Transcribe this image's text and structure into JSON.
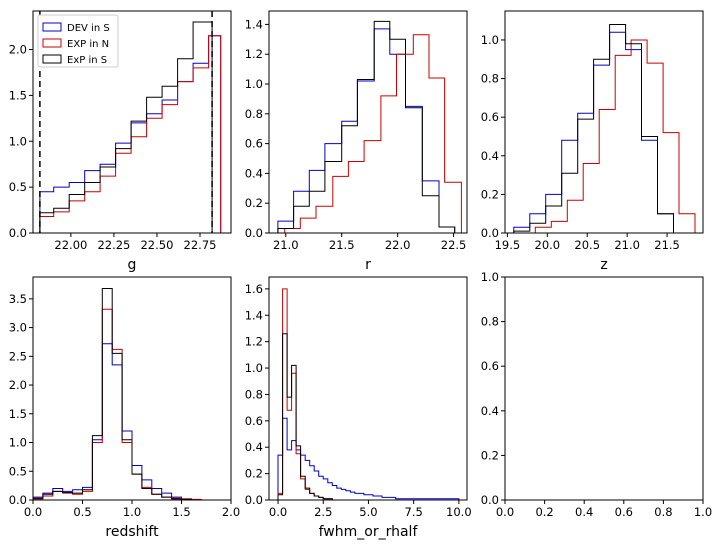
{
  "figure": {
    "colors": {
      "dev_s": "#0000cc",
      "exp_n": "#cc0000",
      "exp_s": "#000000"
    },
    "legend": [
      {
        "label": "DEV in S",
        "color": "#0000cc"
      },
      {
        "label": "EXP in N",
        "color": "#cc0000"
      },
      {
        "label": "ExP in S",
        "color": "#000000"
      }
    ]
  },
  "chart_data": [
    {
      "id": "g",
      "type": "histogram",
      "xlabel": "g",
      "xlim": [
        21.78,
        22.93
      ],
      "ylim": [
        0,
        2.42
      ],
      "xticks": [
        22.0,
        22.25,
        22.5,
        22.75
      ],
      "xtick_labels": [
        "22.00",
        "22.25",
        "22.50",
        "22.75"
      ],
      "yticks": [
        0.0,
        0.5,
        1.0,
        1.5,
        2.0
      ],
      "ytick_labels": [
        "0.0",
        "0.5",
        "1.0",
        "1.5",
        "2.0"
      ],
      "legend": "upper-left",
      "vlines": [
        21.82,
        22.82
      ],
      "series": [
        {
          "name": "DEV in S",
          "color": "#0000cc",
          "edges": [
            21.82,
            21.9,
            21.99,
            22.08,
            22.17,
            22.26,
            22.35,
            22.44,
            22.53,
            22.62,
            22.71,
            22.8,
            22.87
          ],
          "values": [
            0.45,
            0.5,
            0.55,
            0.68,
            0.75,
            0.98,
            1.2,
            1.3,
            1.45,
            1.65,
            1.85,
            2.15
          ]
        },
        {
          "name": "EXP in N",
          "color": "#cc0000",
          "edges": [
            21.82,
            21.9,
            21.99,
            22.08,
            22.17,
            22.26,
            22.35,
            22.44,
            22.53,
            22.62,
            22.71,
            22.8,
            22.87
          ],
          "values": [
            0.18,
            0.23,
            0.35,
            0.45,
            0.62,
            0.87,
            1.05,
            1.25,
            1.4,
            1.65,
            1.8,
            2.15
          ]
        },
        {
          "name": "ExP in S",
          "color": "#000000",
          "edges": [
            21.82,
            21.9,
            21.99,
            22.08,
            22.17,
            22.26,
            22.35,
            22.44,
            22.53,
            22.62,
            22.71,
            22.82
          ],
          "values": [
            0.22,
            0.27,
            0.42,
            0.55,
            0.72,
            0.92,
            1.22,
            1.48,
            1.6,
            1.9,
            2.3
          ]
        }
      ]
    },
    {
      "id": "r",
      "type": "histogram",
      "xlabel": "r",
      "xlim": [
        20.85,
        22.62
      ],
      "ylim": [
        0,
        1.49
      ],
      "xticks": [
        21.0,
        21.5,
        22.0,
        22.5
      ],
      "xtick_labels": [
        "21.0",
        "21.5",
        "22.0",
        "22.5"
      ],
      "yticks": [
        0.0,
        0.2,
        0.4,
        0.6,
        0.8,
        1.0,
        1.2,
        1.4
      ],
      "ytick_labels": [
        "0.0",
        "0.2",
        "0.4",
        "0.6",
        "0.8",
        "1.0",
        "1.2",
        "1.4"
      ],
      "series": [
        {
          "name": "DEV in S",
          "color": "#0000cc",
          "edges": [
            20.93,
            21.07,
            21.21,
            21.35,
            21.5,
            21.64,
            21.79,
            21.93,
            22.07,
            22.22,
            22.37,
            22.51
          ],
          "values": [
            0.08,
            0.28,
            0.42,
            0.6,
            0.75,
            1.02,
            1.37,
            1.2,
            0.85,
            0.35,
            0.04
          ]
        },
        {
          "name": "EXP in N",
          "color": "#cc0000",
          "edges": [
            20.99,
            21.13,
            21.27,
            21.42,
            21.56,
            21.7,
            21.85,
            21.99,
            22.14,
            22.28,
            22.42,
            22.57
          ],
          "values": [
            0.03,
            0.1,
            0.18,
            0.38,
            0.48,
            0.62,
            0.92,
            1.2,
            1.33,
            1.04,
            0.34
          ]
        },
        {
          "name": "ExP in S",
          "color": "#000000",
          "edges": [
            20.93,
            21.07,
            21.21,
            21.35,
            21.5,
            21.64,
            21.79,
            21.93,
            22.07,
            22.22,
            22.37,
            22.51
          ],
          "values": [
            0.03,
            0.18,
            0.28,
            0.48,
            0.72,
            1.03,
            1.42,
            1.3,
            0.84,
            0.25,
            0.04
          ]
        }
      ]
    },
    {
      "id": "z",
      "type": "histogram",
      "xlabel": "z",
      "xlim": [
        19.47,
        21.95
      ],
      "ylim": [
        0,
        1.15
      ],
      "xticks": [
        19.5,
        20.0,
        20.5,
        21.0,
        21.5
      ],
      "xtick_labels": [
        "19.5",
        "20.0",
        "20.5",
        "21.0",
        "21.5"
      ],
      "yticks": [
        0.0,
        0.2,
        0.4,
        0.6,
        0.8,
        1.0
      ],
      "ytick_labels": [
        "0.0",
        "0.2",
        "0.4",
        "0.6",
        "0.8",
        "1.0"
      ],
      "series": [
        {
          "name": "DEV in S",
          "color": "#0000cc",
          "edges": [
            19.58,
            19.78,
            19.98,
            20.18,
            20.38,
            20.58,
            20.78,
            20.98,
            21.18,
            21.38,
            21.58,
            21.78
          ],
          "values": [
            0.03,
            0.1,
            0.2,
            0.48,
            0.62,
            0.87,
            1.04,
            0.95,
            0.48,
            0.1,
            0.0
          ]
        },
        {
          "name": "EXP in N",
          "color": "#cc0000",
          "edges": [
            19.65,
            19.85,
            20.05,
            20.25,
            20.45,
            20.65,
            20.85,
            21.05,
            21.25,
            21.45,
            21.65,
            21.85
          ],
          "values": [
            0.0,
            0.03,
            0.06,
            0.17,
            0.36,
            0.64,
            0.92,
            1.0,
            0.88,
            0.52,
            0.1
          ]
        },
        {
          "name": "ExP in S",
          "color": "#000000",
          "edges": [
            19.58,
            19.78,
            19.98,
            20.18,
            20.38,
            20.58,
            20.78,
            20.98,
            21.18,
            21.38,
            21.58,
            21.78
          ],
          "values": [
            0.01,
            0.05,
            0.14,
            0.31,
            0.59,
            0.9,
            1.08,
            0.98,
            0.5,
            0.1,
            0.0
          ]
        }
      ]
    },
    {
      "id": "redshift",
      "type": "histogram",
      "xlabel": "redshift",
      "xlim": [
        0.0,
        2.0
      ],
      "ylim": [
        0,
        3.88
      ],
      "xticks": [
        0.0,
        0.5,
        1.0,
        1.5,
        2.0
      ],
      "xtick_labels": [
        "0.0",
        "0.5",
        "1.0",
        "1.5",
        "2.0"
      ],
      "yticks": [
        0.0,
        0.5,
        1.0,
        1.5,
        2.0,
        2.5,
        3.0,
        3.5
      ],
      "ytick_labels": [
        "0.0",
        "0.5",
        "1.0",
        "1.5",
        "2.0",
        "2.5",
        "3.0",
        "3.5"
      ],
      "series": [
        {
          "name": "DEV in S",
          "color": "#0000cc",
          "edges": [
            0.0,
            0.1,
            0.2,
            0.3,
            0.4,
            0.5,
            0.6,
            0.7,
            0.8,
            0.9,
            1.0,
            1.1,
            1.2,
            1.3,
            1.4,
            1.5,
            1.6
          ],
          "values": [
            0.05,
            0.12,
            0.2,
            0.15,
            0.18,
            0.22,
            1.05,
            2.72,
            2.35,
            1.2,
            0.6,
            0.35,
            0.2,
            0.12,
            0.05,
            0.02
          ]
        },
        {
          "name": "EXP in N",
          "color": "#cc0000",
          "edges": [
            0.0,
            0.1,
            0.2,
            0.3,
            0.4,
            0.5,
            0.6,
            0.7,
            0.8,
            0.9,
            1.0,
            1.1,
            1.2,
            1.3,
            1.4,
            1.5,
            1.6,
            1.7
          ],
          "values": [
            0.02,
            0.07,
            0.15,
            0.12,
            0.1,
            0.15,
            1.0,
            3.32,
            2.62,
            1.0,
            0.45,
            0.22,
            0.1,
            0.05,
            0.03,
            0.02,
            0.01
          ]
        },
        {
          "name": "ExP in S",
          "color": "#000000",
          "edges": [
            0.0,
            0.1,
            0.2,
            0.3,
            0.4,
            0.5,
            0.6,
            0.7,
            0.8,
            0.9,
            1.0,
            1.1,
            1.2,
            1.3,
            1.4,
            1.5,
            1.6
          ],
          "values": [
            0.03,
            0.1,
            0.15,
            0.13,
            0.12,
            0.18,
            1.12,
            3.68,
            2.55,
            1.05,
            0.45,
            0.2,
            0.1,
            0.05,
            0.02,
            0.01
          ]
        }
      ]
    },
    {
      "id": "fwhm_or_rhalf",
      "type": "histogram",
      "xlabel": "fwhm_or_rhalf",
      "xlim": [
        -0.5,
        10.45
      ],
      "ylim": [
        0,
        1.69
      ],
      "xticks": [
        0.0,
        2.5,
        5.0,
        7.5,
        10.0
      ],
      "xtick_labels": [
        "0.0",
        "2.5",
        "5.0",
        "7.5",
        "10.0"
      ],
      "yticks": [
        0.0,
        0.2,
        0.4,
        0.6,
        0.8,
        1.0,
        1.2,
        1.4,
        1.6
      ],
      "ytick_labels": [
        "0.0",
        "0.2",
        "0.4",
        "0.6",
        "0.8",
        "1.0",
        "1.2",
        "1.4",
        "1.6"
      ],
      "series": [
        {
          "name": "DEV in S",
          "color": "#0000cc",
          "edges": [
            0.0,
            0.25,
            0.5,
            0.75,
            1.0,
            1.25,
            1.5,
            1.75,
            2.0,
            2.25,
            2.5,
            2.75,
            3.0,
            3.25,
            3.5,
            3.75,
            4.0,
            4.25,
            4.5,
            4.75,
            5.0,
            5.25,
            5.5,
            5.75,
            6.0,
            6.25,
            6.5,
            7.0,
            7.5,
            8.0,
            8.5,
            9.0,
            9.5,
            10.0
          ],
          "values": [
            0.34,
            0.62,
            0.38,
            0.45,
            0.38,
            0.34,
            0.3,
            0.26,
            0.22,
            0.18,
            0.16,
            0.13,
            0.11,
            0.09,
            0.08,
            0.07,
            0.06,
            0.05,
            0.05,
            0.04,
            0.04,
            0.03,
            0.03,
            0.02,
            0.02,
            0.02,
            0.01,
            0.01,
            0.01,
            0.01,
            0.01,
            0.01,
            0.01
          ]
        },
        {
          "name": "EXP in N",
          "color": "#cc0000",
          "edges": [
            0.0,
            0.25,
            0.5,
            0.75,
            1.0,
            1.25,
            1.5,
            1.75,
            2.0,
            2.25,
            2.5,
            2.75,
            3.0,
            3.25
          ],
          "values": [
            0.05,
            1.6,
            0.68,
            0.96,
            0.35,
            0.16,
            0.08,
            0.05,
            0.03,
            0.02,
            0.01,
            0.01,
            0.0
          ]
        },
        {
          "name": "ExP in S",
          "color": "#000000",
          "edges": [
            0.0,
            0.25,
            0.5,
            0.75,
            1.0,
            1.25,
            1.5,
            1.75,
            2.0,
            2.25,
            2.5,
            2.75,
            3.0,
            3.25
          ],
          "values": [
            0.04,
            1.26,
            0.78,
            1.02,
            0.41,
            0.18,
            0.09,
            0.05,
            0.03,
            0.02,
            0.01,
            0.01,
            0.0
          ]
        }
      ]
    },
    {
      "id": "empty",
      "type": "empty",
      "xlabel": "",
      "xlim": [
        0.0,
        1.0
      ],
      "ylim": [
        0.0,
        1.0
      ],
      "xticks": [
        0.0,
        0.2,
        0.4,
        0.6,
        0.8,
        1.0
      ],
      "xtick_labels": [
        "0.0",
        "0.2",
        "0.4",
        "0.6",
        "0.8",
        "1.0"
      ],
      "yticks": [
        0.0,
        0.2,
        0.4,
        0.6,
        0.8,
        1.0
      ],
      "ytick_labels": [
        "0.0",
        "0.2",
        "0.4",
        "0.6",
        "0.8",
        "1.0"
      ],
      "series": []
    }
  ]
}
